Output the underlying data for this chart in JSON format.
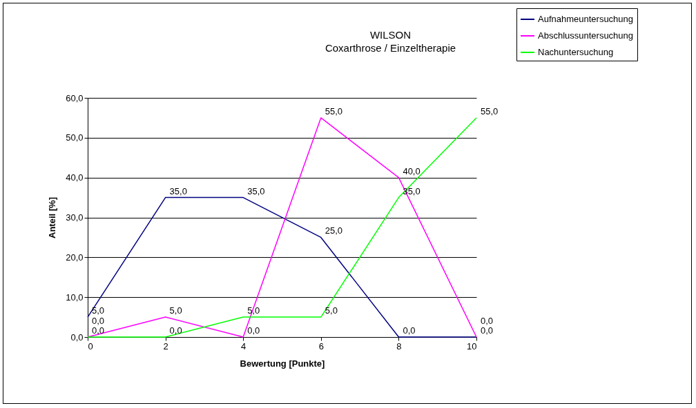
{
  "chart_data": {
    "type": "line",
    "title": "WILSON",
    "subtitle": "Coxarthrose / Einzeltherapie",
    "xlabel": "Bewertung [Punkte]",
    "ylabel": "Anteil [%]",
    "x": [
      0,
      2,
      4,
      6,
      8,
      10
    ],
    "xlim": [
      0,
      10
    ],
    "xticks": [
      0,
      2,
      4,
      6,
      8,
      10
    ],
    "ylim": [
      0,
      60
    ],
    "yticks": [
      {
        "value": 0,
        "label": "0,0"
      },
      {
        "value": 10,
        "label": "10,0"
      },
      {
        "value": 20,
        "label": "20,0"
      },
      {
        "value": 30,
        "label": "30,0"
      },
      {
        "value": 40,
        "label": "40,0"
      },
      {
        "value": 50,
        "label": "50,0"
      },
      {
        "value": 60,
        "label": "60,0"
      }
    ],
    "grid": "y",
    "legend": "top right",
    "marker": "none",
    "line_style": "solid",
    "series": [
      {
        "name": "Aufnahmeuntersuchung",
        "color": "#000080",
        "values": [
          5,
          35,
          35,
          25,
          0,
          0
        ],
        "value_labels": [
          "5,0",
          "35,0",
          "35,0",
          "25,0",
          "0,0",
          "0,0"
        ]
      },
      {
        "name": "Abschlussuntersuchung",
        "color": "#ff00ff",
        "values": [
          0,
          5,
          0,
          55,
          40,
          0
        ],
        "value_labels": [
          "0,0",
          "5,0",
          "0,0",
          "55,0",
          "40,0",
          "0,0"
        ]
      },
      {
        "name": "Nachuntersuchung",
        "color": "#00ff00",
        "values": [
          0,
          0,
          5,
          5,
          35,
          55
        ],
        "value_labels": [
          "0,0",
          "0,0",
          "5,0",
          "5,0",
          "35,0",
          "55,0"
        ]
      }
    ]
  }
}
